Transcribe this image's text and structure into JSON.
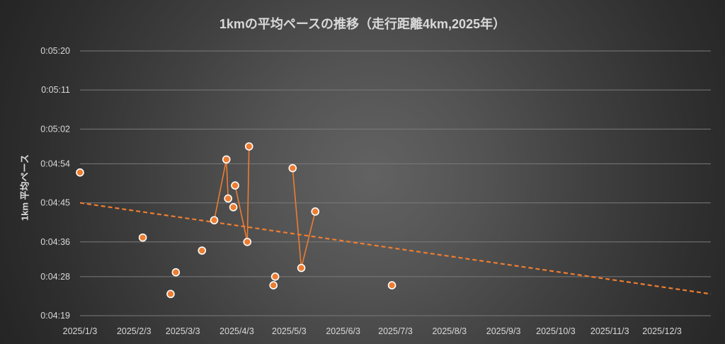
{
  "chart_data": {
    "type": "scatter",
    "title": "1kmの平均ペースの推移（走行距離4km,2025年）",
    "xlabel": "",
    "ylabel": "1km 平均ペース",
    "x_ticks": [
      "2025/1/3",
      "2025/2/3",
      "2025/3/3",
      "2025/4/3",
      "2025/5/3",
      "2025/6/3",
      "2025/7/3",
      "2025/8/3",
      "2025/9/3",
      "2025/10/3",
      "2025/11/3",
      "2025/12/3"
    ],
    "y_ticks": [
      "0:05:20",
      "0:05:11",
      "0:05:02",
      "0:04:54",
      "0:04:45",
      "0:04:36",
      "0:04:28",
      "0:04:19"
    ],
    "ylim": [
      "0:04:19",
      "0:05:20"
    ],
    "xlim": [
      "2025/1/3",
      "2025/12/31"
    ],
    "grid": "horizontal",
    "legend": "none",
    "colors": {
      "marker": "#ed7d31",
      "marker_edge": "#ffffff",
      "trend": "#ed7d31",
      "grid": "#7a7a7a",
      "text": "#d9d9d9"
    },
    "series": [
      {
        "values": [
          {
            "x": "2025/1/3",
            "y": "0:04:52"
          },
          {
            "x": "2025/2/8",
            "y": "0:04:37"
          },
          {
            "x": "2025/2/24",
            "y": "0:04:24"
          },
          {
            "x": "2025/2/27",
            "y": "0:04:29"
          },
          {
            "x": "2025/3/14",
            "y": "0:04:34"
          },
          {
            "x": "2025/3/21",
            "y": "0:04:41",
            "connected": true
          },
          {
            "x": "2025/3/28",
            "y": "0:04:55",
            "connected": true
          },
          {
            "x": "2025/3/29",
            "y": "0:04:46",
            "connected": true
          },
          {
            "x": "2025/4/1",
            "y": "0:04:44"
          },
          {
            "x": "2025/4/2",
            "y": "0:04:49",
            "connected": true
          },
          {
            "x": "2025/4/9",
            "y": "0:04:36",
            "connected": true
          },
          {
            "x": "2025/4/10",
            "y": "0:04:58",
            "connected": true
          },
          {
            "x": "2025/4/24",
            "y": "0:04:26"
          },
          {
            "x": "2025/4/25",
            "y": "0:04:28"
          },
          {
            "x": "2025/5/5",
            "y": "0:04:53",
            "connected": true
          },
          {
            "x": "2025/5/10",
            "y": "0:04:30",
            "connected": true
          },
          {
            "x": "2025/5/18",
            "y": "0:04:43",
            "connected": true
          },
          {
            "x": "2025/7/1",
            "y": "0:04:26"
          }
        ]
      }
    ],
    "trendline": {
      "type": "linear",
      "style": "dashed",
      "from": {
        "x": "2025/1/3",
        "y": "0:04:45"
      },
      "to": {
        "x": "2025/12/31",
        "y": "0:04:24"
      }
    }
  }
}
